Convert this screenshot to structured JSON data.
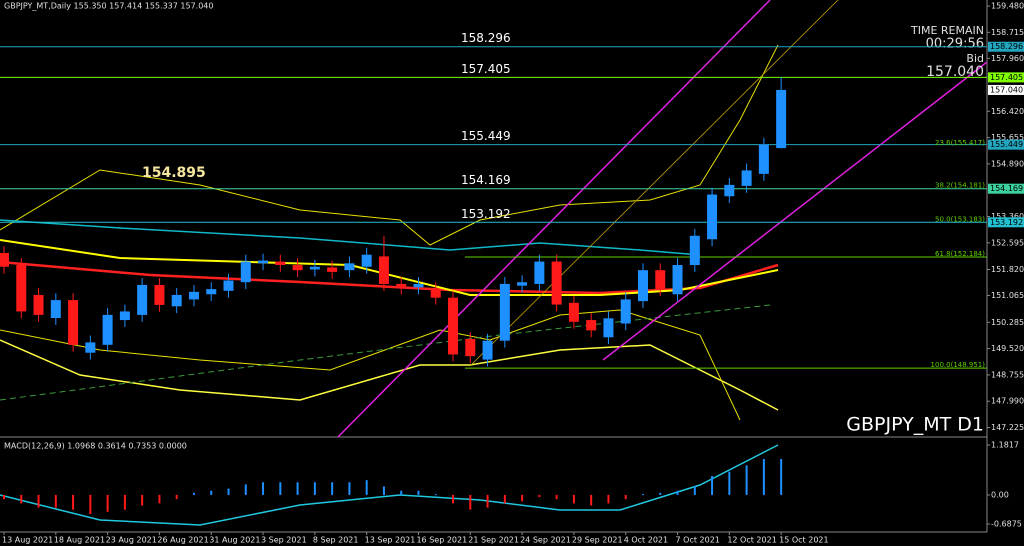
{
  "chart_data": {
    "type": "candlestick",
    "title": "GBPJPY_MT,Daily  155.350 157.414 155.337 157.040",
    "symbol_label": "GBPJPY_MT D1",
    "time_remain_label": "TIME REMAIN",
    "time_remain": "00:29:56",
    "bid_label": "Bid",
    "bid": "157.040",
    "marker_label": "154.895",
    "up_color": "#1e90ff",
    "down_color": "#ff1a1a",
    "categories": [
      "13 Aug 2021",
      null,
      null,
      "18 Aug 2021",
      null,
      null,
      "23 Aug 2021",
      null,
      null,
      "26 Aug 2021",
      null,
      null,
      "31 Aug 2021",
      null,
      null,
      "3 Sep 2021",
      null,
      null,
      "8 Sep 2021",
      null,
      null,
      "13 Sep 2021",
      null,
      null,
      "16 Sep 2021",
      null,
      null,
      "21 Sep 2021",
      null,
      null,
      "24 Sep 2021",
      null,
      null,
      "29 Sep 2021",
      null,
      null,
      "4 Oct 2021",
      null,
      null,
      "7 Oct 2021",
      null,
      null,
      "12 Oct 2021",
      null,
      null,
      "15 Oct 2021"
    ],
    "open": [
      152.3,
      151.95,
      151.08,
      150.41,
      150.93,
      149.4,
      149.63,
      150.35,
      150.5,
      151.37,
      150.75,
      150.95,
      151.1,
      151.2,
      151.45,
      152.0,
      152.05,
      151.95,
      151.82,
      151.88,
      151.8,
      151.9,
      152.2,
      151.4,
      151.3,
      151.25,
      151.0,
      149.8,
      149.2,
      149.75,
      151.35,
      151.4,
      152.05,
      150.85,
      150.35,
      149.85,
      150.25,
      150.9,
      151.8,
      151.1,
      151.95,
      152.7,
      153.95,
      154.25,
      154.6,
      155.35
    ],
    "high": [
      152.5,
      152.15,
      151.28,
      151.13,
      151.13,
      149.9,
      150.7,
      150.8,
      151.57,
      151.57,
      151.28,
      151.37,
      151.45,
      151.7,
      152.25,
      152.28,
      152.25,
      152.15,
      152.1,
      152.08,
      152.2,
      152.45,
      152.8,
      151.6,
      151.6,
      151.45,
      151.2,
      150.0,
      149.95,
      151.6,
      151.65,
      152.25,
      152.25,
      151.05,
      150.55,
      150.6,
      151.15,
      152.0,
      152.0,
      152.15,
      153.0,
      154.2,
      154.48,
      154.9,
      155.65,
      157.414
    ],
    "low": [
      151.7,
      150.4,
      150.3,
      150.21,
      149.43,
      149.2,
      149.43,
      150.15,
      150.3,
      150.59,
      150.55,
      150.75,
      150.9,
      151.0,
      151.25,
      151.8,
      151.75,
      151.6,
      151.62,
      151.55,
      151.6,
      151.7,
      151.2,
      151.1,
      151.1,
      150.8,
      149.15,
      149.1,
      149.0,
      149.55,
      151.15,
      151.2,
      150.6,
      150.1,
      149.85,
      149.65,
      150.05,
      150.7,
      151.05,
      150.9,
      151.75,
      152.5,
      153.75,
      154.05,
      154.4,
      155.337
    ],
    "close": [
      151.9,
      150.6,
      150.5,
      150.93,
      149.63,
      149.7,
      150.5,
      150.6,
      151.37,
      150.79,
      151.08,
      151.17,
      151.25,
      151.5,
      152.05,
      152.08,
      151.95,
      151.8,
      151.9,
      151.75,
      152.0,
      152.25,
      151.4,
      151.3,
      151.4,
      151.0,
      149.35,
      149.3,
      149.75,
      151.4,
      151.45,
      152.05,
      150.8,
      150.3,
      150.05,
      150.4,
      150.95,
      151.8,
      151.25,
      151.95,
      152.8,
      154.0,
      154.28,
      154.7,
      155.45,
      157.04
    ],
    "ylim": [
      146.95,
      159.655
    ],
    "yticks": [
      {
        "value": 159.48,
        "label": "159.480"
      },
      {
        "value": 158.715,
        "label": "158.715"
      },
      {
        "value": 157.96,
        "label": "157.960"
      },
      {
        "value": 156.42,
        "label": "156.420"
      },
      {
        "value": 155.655,
        "label": "155.655"
      },
      {
        "value": 154.89,
        "label": "154.890"
      },
      {
        "value": 153.36,
        "label": "153.360"
      },
      {
        "value": 152.595,
        "label": "152.595"
      },
      {
        "value": 151.82,
        "label": "151.820"
      },
      {
        "value": 151.065,
        "label": "151.065"
      },
      {
        "value": 150.285,
        "label": "150.285"
      },
      {
        "value": 149.52,
        "label": "149.520"
      },
      {
        "value": 148.755,
        "label": "148.755"
      },
      {
        "value": 147.99,
        "label": "147.990"
      },
      {
        "value": 147.225,
        "label": "147.225"
      }
    ],
    "levels": [
      {
        "value": 158.296,
        "label": "158.296",
        "color": "#22a6c0"
      },
      {
        "value": 157.405,
        "label": "157.405",
        "color": "#7fff00"
      },
      {
        "value": 155.449,
        "label": "155.449",
        "color": "#22a6c0"
      },
      {
        "value": 154.169,
        "label": "154.169",
        "color": "#3cd2a0"
      },
      {
        "value": 153.192,
        "label": "153.192",
        "color": "#22c0d0"
      }
    ],
    "fib_levels": [
      {
        "value": 155.417,
        "label": "23.6(155.417)"
      },
      {
        "value": 154.181,
        "label": "38.2(154.181)"
      },
      {
        "value": 153.183,
        "label": "50.0(153.183)"
      },
      {
        "value": 152.184,
        "label": "61.8(152.184)"
      },
      {
        "value": 148.951,
        "label": "100.0(148.951)"
      }
    ],
    "fib_color": "#5fd000",
    "macd": {
      "title": "MACD(12,26,9) 1.0968 0.3614 0.7353 0.0000",
      "values": [
        -0.1,
        -0.2,
        -0.3,
        -0.3,
        -0.35,
        -0.45,
        -0.4,
        -0.35,
        -0.25,
        -0.2,
        -0.1,
        0.05,
        0.1,
        0.15,
        0.25,
        0.3,
        0.3,
        0.3,
        0.3,
        0.3,
        0.3,
        0.35,
        0.2,
        0.1,
        0.1,
        0.02,
        -0.2,
        -0.35,
        -0.3,
        -0.2,
        -0.15,
        -0.05,
        -0.1,
        -0.2,
        -0.25,
        -0.2,
        -0.1,
        0.02,
        0.05,
        0.1,
        0.2,
        0.45,
        0.55,
        0.7,
        0.85,
        0.85
      ],
      "ylim": [
        -0.877,
        1.347
      ],
      "yticks": [
        1.1817,
        {
          "value": 0,
          "label": "0.00"
        },
        -0.6875
      ]
    }
  }
}
